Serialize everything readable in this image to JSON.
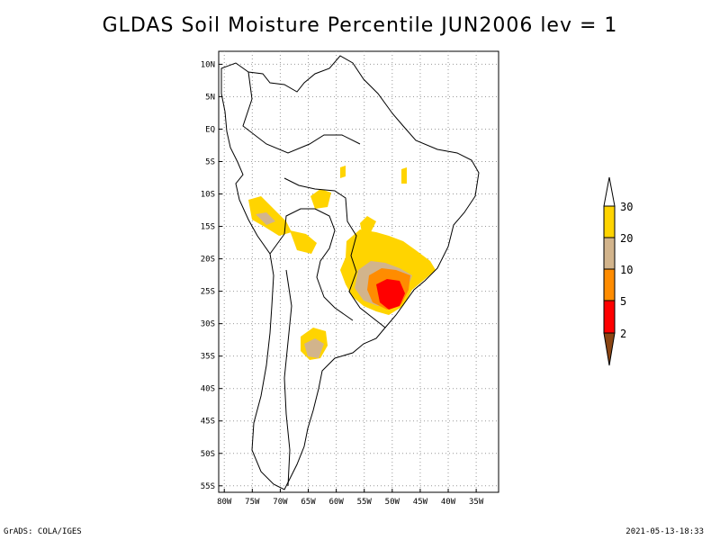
{
  "title": "GLDAS Soil Moisture Percentile JUN2006 lev = 1",
  "footer": {
    "left": "GrADS: COLA/IGES",
    "right": "2021-05-13-18:33"
  },
  "map": {
    "lon_labels": [
      "80W",
      "75W",
      "70W",
      "65W",
      "60W",
      "55W",
      "50W",
      "45W",
      "40W",
      "35W"
    ],
    "lon_values": [
      -80,
      -75,
      -70,
      -65,
      -60,
      -55,
      -50,
      -45,
      -40,
      -35
    ],
    "lat_labels": [
      "10N",
      "5N",
      "EQ",
      "5S",
      "10S",
      "15S",
      "20S",
      "25S",
      "30S",
      "35S",
      "40S",
      "45S",
      "50S",
      "55S"
    ],
    "lat_values": [
      10,
      5,
      0,
      -5,
      -10,
      -15,
      -20,
      -25,
      -30,
      -35,
      -40,
      -45,
      -50,
      -55
    ],
    "lon_range": [
      -81,
      -31
    ],
    "lat_range": [
      -56,
      12
    ],
    "grid": true
  },
  "colorbar": {
    "labels": [
      "30",
      "20",
      "10",
      "5",
      "2"
    ],
    "colors": {
      "above_30": "#ffffff",
      "20_30": "#ffd400",
      "10_20": "#d2b48c",
      "5_10": "#ff8c00",
      "2_5": "#ff0000",
      "below_2": "#8b4513"
    }
  }
}
